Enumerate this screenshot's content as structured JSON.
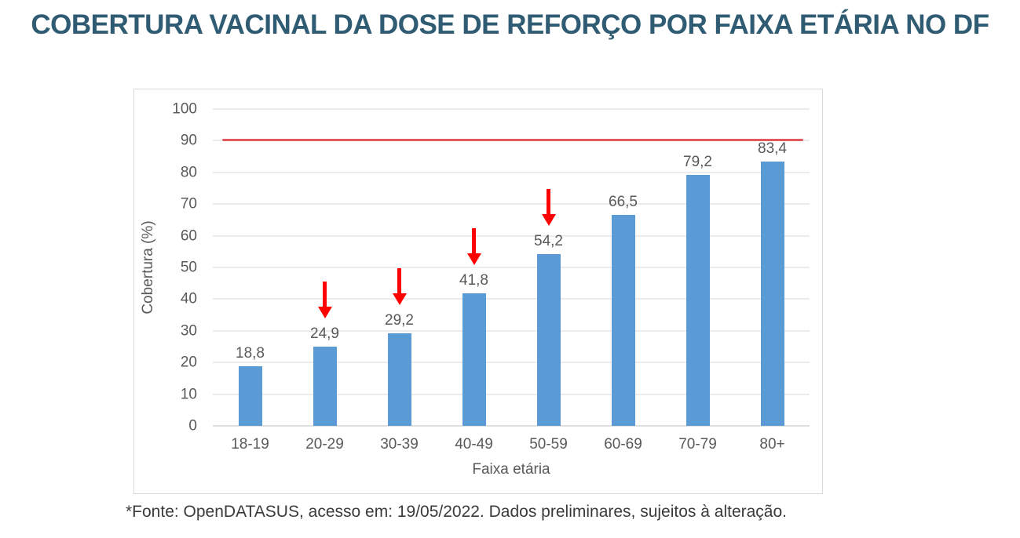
{
  "page": {
    "title": "COBERTURA VACINAL DA DOSE DE REFORÇO POR FAIXA ETÁRIA NO DF",
    "footnote": "*Fonte: OpenDATASUS, acesso em: 19/05/2022. Dados preliminares, sujeitos à alteração."
  },
  "colors": {
    "title": "#2F5B73",
    "bar": "#5B9BD5",
    "reference_line": "#E05A5E",
    "arrow": "#FF0000",
    "gridline": "#D9D9D9",
    "axis_text": "#595959",
    "chart_border": "#D9D9D9"
  },
  "chart_data": {
    "type": "bar",
    "title": "",
    "categories": [
      "18-19",
      "20-29",
      "30-39",
      "40-49",
      "50-59",
      "60-69",
      "70-79",
      "80+"
    ],
    "values": [
      18.8,
      24.9,
      29.2,
      41.8,
      54.2,
      66.5,
      79.2,
      83.4
    ],
    "value_labels": [
      "18,8",
      "24,9",
      "29,2",
      "41,8",
      "54,2",
      "66,5",
      "79,2",
      "83,4"
    ],
    "xlabel": "Faixa etária",
    "ylabel": "Cobertura (%)",
    "ylim": [
      0,
      100
    ],
    "yticks": [
      0,
      10,
      20,
      30,
      40,
      50,
      60,
      70,
      80,
      90,
      100
    ],
    "grid": true,
    "legend": "none",
    "reference_line_y": 90,
    "arrow_marker_indices": [
      1,
      2,
      3,
      4
    ]
  }
}
